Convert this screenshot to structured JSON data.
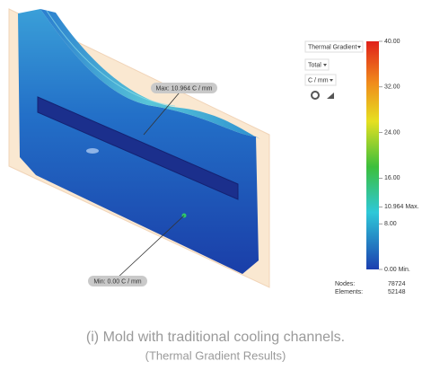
{
  "controls": {
    "result": "Thermal Gradient",
    "component": "Total",
    "unit": "C / mm"
  },
  "legend": {
    "ticks": [
      {
        "value": 40,
        "label": "40.00"
      },
      {
        "value": 32,
        "label": "32.00"
      },
      {
        "value": 24,
        "label": "24.00"
      },
      {
        "value": 16,
        "label": "16.00"
      },
      {
        "value": 10.964,
        "label": "10.964 Max."
      },
      {
        "value": 8,
        "label": "8.00"
      },
      {
        "value": 0,
        "label": "0.00 Min."
      }
    ]
  },
  "stats": {
    "nodes_label": "Nodes:",
    "nodes": "78724",
    "elements_label": "Elements:",
    "elements": "52148"
  },
  "callouts": {
    "max": "Max: 10.964 C / mm",
    "min": "Min: 0.00 C / mm"
  },
  "caption": {
    "line1": "(i) Mold with traditional cooling channels.",
    "line2": "(Thermal Gradient Results)"
  }
}
